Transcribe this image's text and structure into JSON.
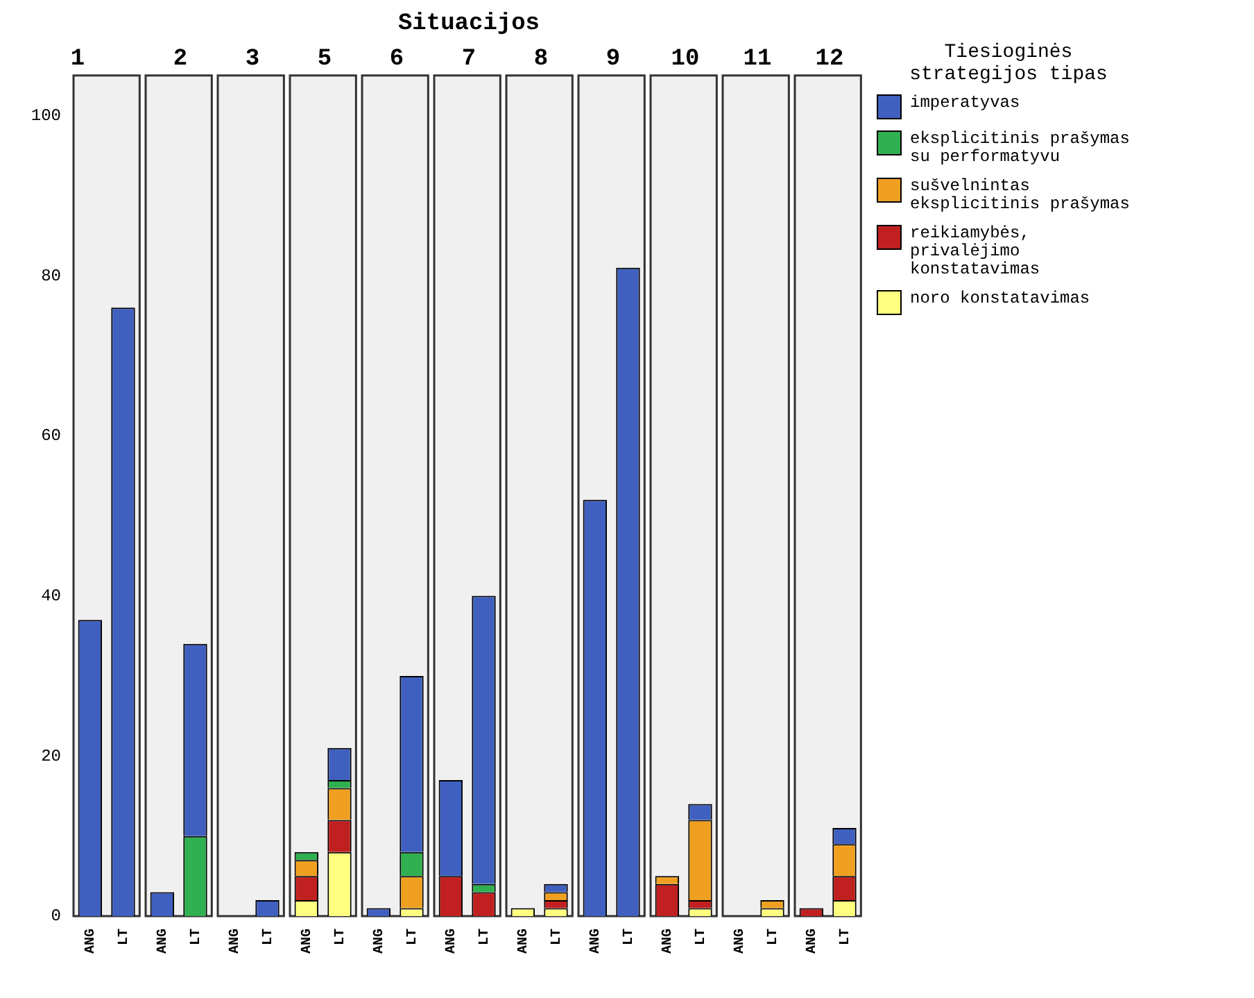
{
  "chart_data": [
    {
      "type": "bar",
      "title": "1",
      "annotations": [
        "Situacijos"
      ],
      "categories": [
        "ANG",
        "LT"
      ],
      "stacked": true,
      "ylim": [
        0,
        105
      ],
      "yticks": [
        0,
        20,
        40,
        60,
        80,
        100
      ],
      "grid": false,
      "series": [
        {
          "color": "#ffff80",
          "values": [
            0,
            0
          ]
        },
        {
          "color": "#c02020",
          "values": [
            0,
            0
          ]
        },
        {
          "color": "#f0a020",
          "values": [
            0,
            0
          ]
        },
        {
          "color": "#30b050",
          "values": [
            0,
            0
          ]
        },
        {
          "color": "#4060c0",
          "values": [
            37,
            76
          ]
        }
      ]
    },
    {
      "type": "bar",
      "title": "2",
      "categories": [
        "ANG",
        "LT"
      ],
      "stacked": true,
      "ylim": [
        0,
        105
      ],
      "yticks": [
        0,
        20,
        40,
        60,
        80,
        100
      ],
      "tick_labels": "x",
      "grid": false,
      "series": [
        {
          "color": "#ffff80",
          "values": [
            0,
            0
          ]
        },
        {
          "color": "#c02020",
          "values": [
            0,
            0
          ]
        },
        {
          "color": "#f0a020",
          "values": [
            0,
            0
          ]
        },
        {
          "color": "#30b050",
          "values": [
            0,
            10
          ]
        },
        {
          "color": "#4060c0",
          "values": [
            3,
            24
          ]
        }
      ]
    },
    {
      "type": "bar",
      "title": "3",
      "categories": [
        "ANG",
        "LT"
      ],
      "stacked": true,
      "ylim": [
        0,
        105
      ],
      "yticks": [
        0,
        20,
        40,
        60,
        80,
        100
      ],
      "tick_labels": "x",
      "grid": false,
      "series": [
        {
          "color": "#ffff80",
          "values": [
            0,
            0
          ]
        },
        {
          "color": "#c02020",
          "values": [
            0,
            0
          ]
        },
        {
          "color": "#f0a020",
          "values": [
            0,
            0
          ]
        },
        {
          "color": "#30b050",
          "values": [
            0,
            0
          ]
        },
        {
          "color": "#4060c0",
          "values": [
            0,
            2
          ]
        }
      ]
    },
    {
      "type": "bar",
      "title": "5",
      "categories": [
        "ANG",
        "LT"
      ],
      "stacked": true,
      "ylim": [
        0,
        105
      ],
      "yticks": [
        0,
        20,
        40,
        60,
        80,
        100
      ],
      "tick_labels": "x",
      "grid": false,
      "series": [
        {
          "color": "#ffff80",
          "values": [
            2,
            8
          ]
        },
        {
          "color": "#c02020",
          "values": [
            3,
            4
          ]
        },
        {
          "color": "#f0a020",
          "values": [
            2,
            4
          ]
        },
        {
          "color": "#30b050",
          "values": [
            1,
            1
          ]
        },
        {
          "color": "#4060c0",
          "values": [
            0,
            4
          ]
        }
      ]
    },
    {
      "type": "bar",
      "title": "6",
      "categories": [
        "ANG",
        "LT"
      ],
      "stacked": true,
      "ylim": [
        0,
        105
      ],
      "yticks": [
        0,
        20,
        40,
        60,
        80,
        100
      ],
      "tick_labels": "x",
      "grid": false,
      "series": [
        {
          "color": "#ffff80",
          "values": [
            0,
            1
          ]
        },
        {
          "color": "#c02020",
          "values": [
            0,
            0
          ]
        },
        {
          "color": "#f0a020",
          "values": [
            0,
            4
          ]
        },
        {
          "color": "#30b050",
          "values": [
            0,
            3
          ]
        },
        {
          "color": "#4060c0",
          "values": [
            1,
            22
          ]
        }
      ]
    },
    {
      "type": "bar",
      "title": "7",
      "categories": [
        "ANG",
        "LT"
      ],
      "stacked": true,
      "ylim": [
        0,
        105
      ],
      "yticks": [
        0,
        20,
        40,
        60,
        80,
        100
      ],
      "tick_labels": "x",
      "grid": false,
      "series": [
        {
          "color": "#ffff80",
          "values": [
            0,
            0
          ]
        },
        {
          "color": "#c02020",
          "values": [
            5,
            3
          ]
        },
        {
          "color": "#f0a020",
          "values": [
            0,
            0
          ]
        },
        {
          "color": "#30b050",
          "values": [
            0,
            1
          ]
        },
        {
          "color": "#4060c0",
          "values": [
            12,
            36
          ]
        }
      ]
    },
    {
      "type": "bar",
      "title": "8",
      "categories": [
        "ANG",
        "LT"
      ],
      "stacked": true,
      "ylim": [
        0,
        105
      ],
      "yticks": [
        0,
        20,
        40,
        60,
        80,
        100
      ],
      "tick_labels": "x",
      "grid": false,
      "series": [
        {
          "color": "#ffff80",
          "values": [
            1,
            1
          ]
        },
        {
          "color": "#c02020",
          "values": [
            0,
            1
          ]
        },
        {
          "color": "#f0a020",
          "values": [
            0,
            1
          ]
        },
        {
          "color": "#30b050",
          "values": [
            0,
            0
          ]
        },
        {
          "color": "#4060c0",
          "values": [
            0,
            1
          ]
        }
      ]
    },
    {
      "type": "bar",
      "title": "9",
      "categories": [
        "ANG",
        "LT"
      ],
      "stacked": true,
      "ylim": [
        0,
        105
      ],
      "yticks": [
        0,
        20,
        40,
        60,
        80,
        100
      ],
      "tick_labels": "x",
      "grid": false,
      "series": [
        {
          "color": "#ffff80",
          "values": [
            0,
            0
          ]
        },
        {
          "color": "#c02020",
          "values": [
            0,
            0
          ]
        },
        {
          "color": "#f0a020",
          "values": [
            0,
            0
          ]
        },
        {
          "color": "#30b050",
          "values": [
            0,
            0
          ]
        },
        {
          "color": "#4060c0",
          "values": [
            52,
            81
          ]
        }
      ]
    },
    {
      "type": "bar",
      "title": "10",
      "categories": [
        "ANG",
        "LT"
      ],
      "stacked": true,
      "ylim": [
        0,
        105
      ],
      "yticks": [
        0,
        20,
        40,
        60,
        80,
        100
      ],
      "tick_labels": "x",
      "grid": false,
      "series": [
        {
          "color": "#ffff80",
          "values": [
            0,
            1
          ]
        },
        {
          "color": "#c02020",
          "values": [
            4,
            1
          ]
        },
        {
          "color": "#f0a020",
          "values": [
            1,
            10
          ]
        },
        {
          "color": "#30b050",
          "values": [
            0,
            0
          ]
        },
        {
          "color": "#4060c0",
          "values": [
            0,
            2
          ]
        }
      ]
    },
    {
      "type": "bar",
      "title": "11",
      "categories": [
        "ANG",
        "LT"
      ],
      "stacked": true,
      "ylim": [
        0,
        105
      ],
      "yticks": [
        0,
        20,
        40,
        60,
        80,
        100
      ],
      "tick_labels": "x",
      "grid": false,
      "series": [
        {
          "color": "#ffff80",
          "values": [
            0,
            1
          ]
        },
        {
          "color": "#c02020",
          "values": [
            0,
            0
          ]
        },
        {
          "color": "#f0a020",
          "values": [
            0,
            1
          ]
        },
        {
          "color": "#30b050",
          "values": [
            0,
            0
          ]
        },
        {
          "color": "#4060c0",
          "values": [
            0,
            0
          ]
        }
      ]
    },
    {
      "type": "bar",
      "title": "12",
      "categories": [
        "ANG",
        "LT"
      ],
      "stacked": true,
      "ylim": [
        0,
        105
      ],
      "yticks": [
        0,
        20,
        40,
        60,
        80,
        100
      ],
      "tick_labels": "x",
      "grid": false,
      "legend": "right",
      "legend_title": "Tiesioginės strategijos tipas",
      "series": [
        {
          "name": "noro konstatavimas",
          "color": "#ffff80",
          "values": [
            0,
            2
          ]
        },
        {
          "name": "reikiamybės, privalėjimo konstatavimas",
          "color": "#c02020",
          "values": [
            1,
            3
          ]
        },
        {
          "name": "sušvelnintas eksplicitinis prašymas",
          "color": "#f0a020",
          "values": [
            0,
            4
          ]
        },
        {
          "name": "eksplicitinis prašymas su performatyvu",
          "color": "#30b050",
          "values": [
            0,
            0
          ]
        },
        {
          "name": "imperatyvas",
          "color": "#4060c0",
          "values": [
            0,
            2
          ]
        }
      ]
    }
  ]
}
